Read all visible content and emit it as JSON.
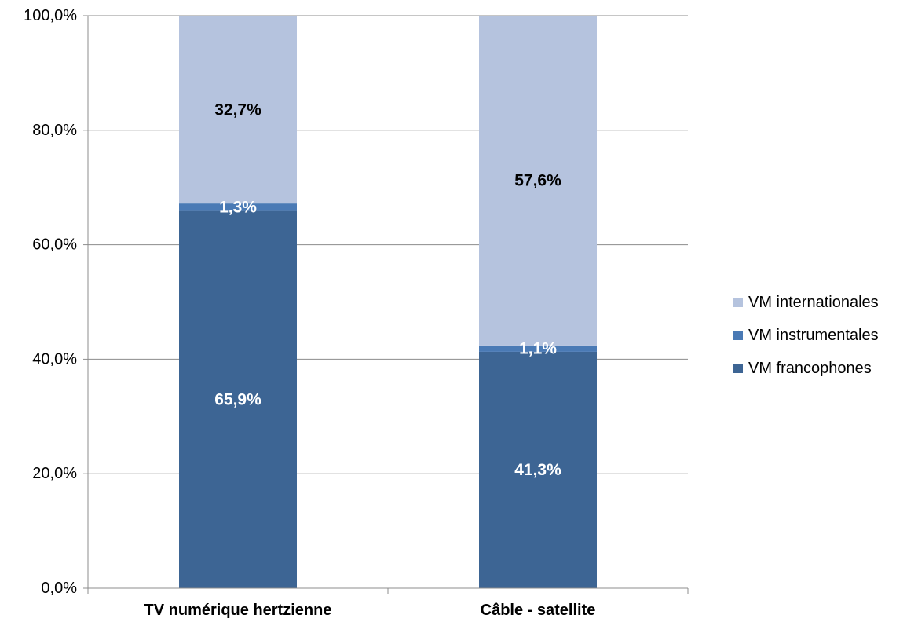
{
  "chart_data": {
    "type": "bar",
    "stacked": true,
    "categories": [
      "TV numérique hertzienne",
      "Câble - satellite"
    ],
    "series": [
      {
        "name": "VM francophones",
        "values": [
          65.9,
          41.3
        ],
        "labels": [
          "65,9%",
          "41,3%"
        ],
        "color": "#3d6594",
        "label_color": "#ffffff"
      },
      {
        "name": "VM instrumentales",
        "values": [
          1.3,
          1.1
        ],
        "labels": [
          "1,3%",
          "1,1%"
        ],
        "color": "#4a7ab5",
        "label_color": "#ffffff"
      },
      {
        "name": "VM internationales",
        "values": [
          32.7,
          57.6
        ],
        "labels": [
          "32,7%",
          "57,6%"
        ],
        "color": "#b5c3de",
        "label_color": "#000000"
      }
    ],
    "ylim": [
      0,
      100
    ],
    "yticks": [
      0,
      20,
      40,
      60,
      80,
      100
    ],
    "ytick_labels": [
      "0,0%",
      "20,0%",
      "40,0%",
      "60,0%",
      "80,0%",
      "100,0%"
    ],
    "grid": true,
    "legend_position": "right",
    "legend_order": [
      "VM internationales",
      "VM instrumentales",
      "VM francophones"
    ],
    "xlabel": "",
    "ylabel": "",
    "title": ""
  }
}
